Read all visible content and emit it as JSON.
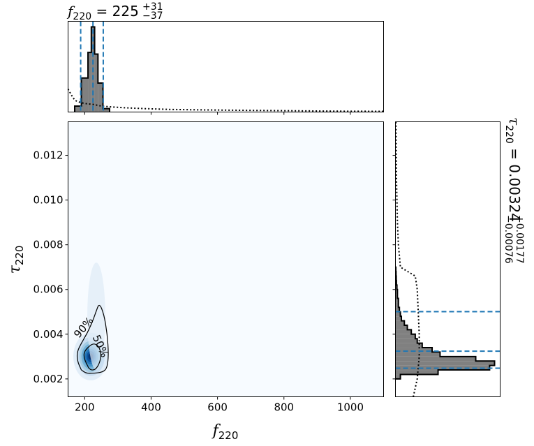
{
  "colors": {
    "hist_fill": "#808080",
    "hist_edge": "#000000",
    "quantile": "#1f77b4",
    "prior": "#000000",
    "density_low": "#f7fbff",
    "density_high": "#08306b"
  },
  "titles": {
    "top": {
      "symbol": "f",
      "subscript": "220",
      "eq": " = ",
      "value": "225",
      "plus": "+31",
      "minus": "−37"
    },
    "right": {
      "symbol": "τ",
      "subscript": "220",
      "eq": " = ",
      "value": "0.00324",
      "plus": "+0.00177",
      "minus": "−0.00076"
    }
  },
  "axes": {
    "x": {
      "symbol": "f",
      "subscript": "220"
    },
    "y": {
      "symbol": "τ",
      "subscript": "220"
    }
  },
  "chart_data": [
    {
      "type": "area",
      "name": "f220 marginal histogram",
      "xlim": [
        150,
        1100
      ],
      "bins_x": [
        170,
        190,
        210,
        220,
        230,
        240,
        255,
        275
      ],
      "counts": [
        0.07,
        0.4,
        0.7,
        1.0,
        0.68,
        0.34,
        0.04
      ],
      "prior_curve": {
        "x": [
          150,
          160,
          170,
          180,
          200,
          225,
          250,
          280,
          320,
          380,
          460,
          560,
          680,
          820,
          960,
          1100
        ],
        "y": [
          0.27,
          0.2,
          0.14,
          0.12,
          0.1,
          0.09,
          0.07,
          0.06,
          0.05,
          0.04,
          0.03,
          0.025,
          0.02,
          0.015,
          0.01,
          0.008
        ]
      },
      "quantiles": [
        188,
        225,
        256
      ],
      "xticks": [
        "200",
        "400",
        "600",
        "800",
        "1000"
      ]
    },
    {
      "type": "heatmap",
      "name": "joint posterior density",
      "xlim": [
        150,
        1100
      ],
      "ylim": [
        0.0012,
        0.0135
      ],
      "peak": {
        "x": 218,
        "y": 0.003
      },
      "contours": [
        {
          "label": "50%",
          "points": [
            [
              205,
              0.0027
            ],
            [
              198,
              0.00295
            ],
            [
              198,
              0.0032
            ],
            [
              212,
              0.00345
            ],
            [
              228,
              0.0036
            ],
            [
              243,
              0.00345
            ],
            [
              250,
              0.0031
            ],
            [
              245,
              0.0027
            ],
            [
              232,
              0.0024
            ],
            [
              215,
              0.0024
            ],
            [
              205,
              0.0027
            ]
          ]
        },
        {
          "label": "90%",
          "points": [
            [
              190,
              0.0024
            ],
            [
              178,
              0.0028
            ],
            [
              177,
              0.0032
            ],
            [
              190,
              0.0036
            ],
            [
              206,
              0.004
            ],
            [
              222,
              0.0045
            ],
            [
              234,
              0.005
            ],
            [
              244,
              0.0054
            ],
            [
              258,
              0.0049
            ],
            [
              268,
              0.004
            ],
            [
              272,
              0.0031
            ],
            [
              268,
              0.0025
            ],
            [
              255,
              0.0023
            ],
            [
              225,
              0.00225
            ],
            [
              205,
              0.00225
            ],
            [
              190,
              0.0024
            ]
          ]
        }
      ],
      "xticks": [
        "200",
        "400",
        "600",
        "800",
        "1000"
      ],
      "yticks": [
        "0.002",
        "0.004",
        "0.006",
        "0.008",
        "0.010",
        "0.012"
      ]
    },
    {
      "type": "area",
      "name": "tau220 marginal histogram",
      "ylim": [
        0.0012,
        0.0135
      ],
      "bin_edges": [
        0.002,
        0.0022,
        0.0024,
        0.0026,
        0.0028,
        0.003,
        0.0032,
        0.0034,
        0.0036,
        0.0038,
        0.004,
        0.0042,
        0.0044,
        0.0046,
        0.0048,
        0.005,
        0.0052,
        0.0054,
        0.0056,
        0.0058,
        0.006,
        0.0062,
        0.0064,
        0.0066,
        0.0068,
        0.007
      ],
      "counts": [
        0.05,
        0.43,
        0.95,
        1.0,
        0.81,
        0.45,
        0.37,
        0.27,
        0.22,
        0.2,
        0.16,
        0.12,
        0.09,
        0.06,
        0.05,
        0.04,
        0.03,
        0.03,
        0.02,
        0.02,
        0.015,
        0.01,
        0.008,
        0.006,
        0.004
      ],
      "prior_curve": {
        "y": [
          0.0012,
          0.002,
          0.003,
          0.004,
          0.005,
          0.006,
          0.0066,
          0.007,
          0.008,
          0.009,
          0.01,
          0.011,
          0.012,
          0.0135
        ],
        "x": [
          0.18,
          0.22,
          0.24,
          0.24,
          0.23,
          0.22,
          0.2,
          0.05,
          0.03,
          0.02,
          0.015,
          0.01,
          0.008,
          0.005
        ]
      },
      "quantiles": [
        0.00248,
        0.00324,
        0.00501
      ]
    }
  ]
}
